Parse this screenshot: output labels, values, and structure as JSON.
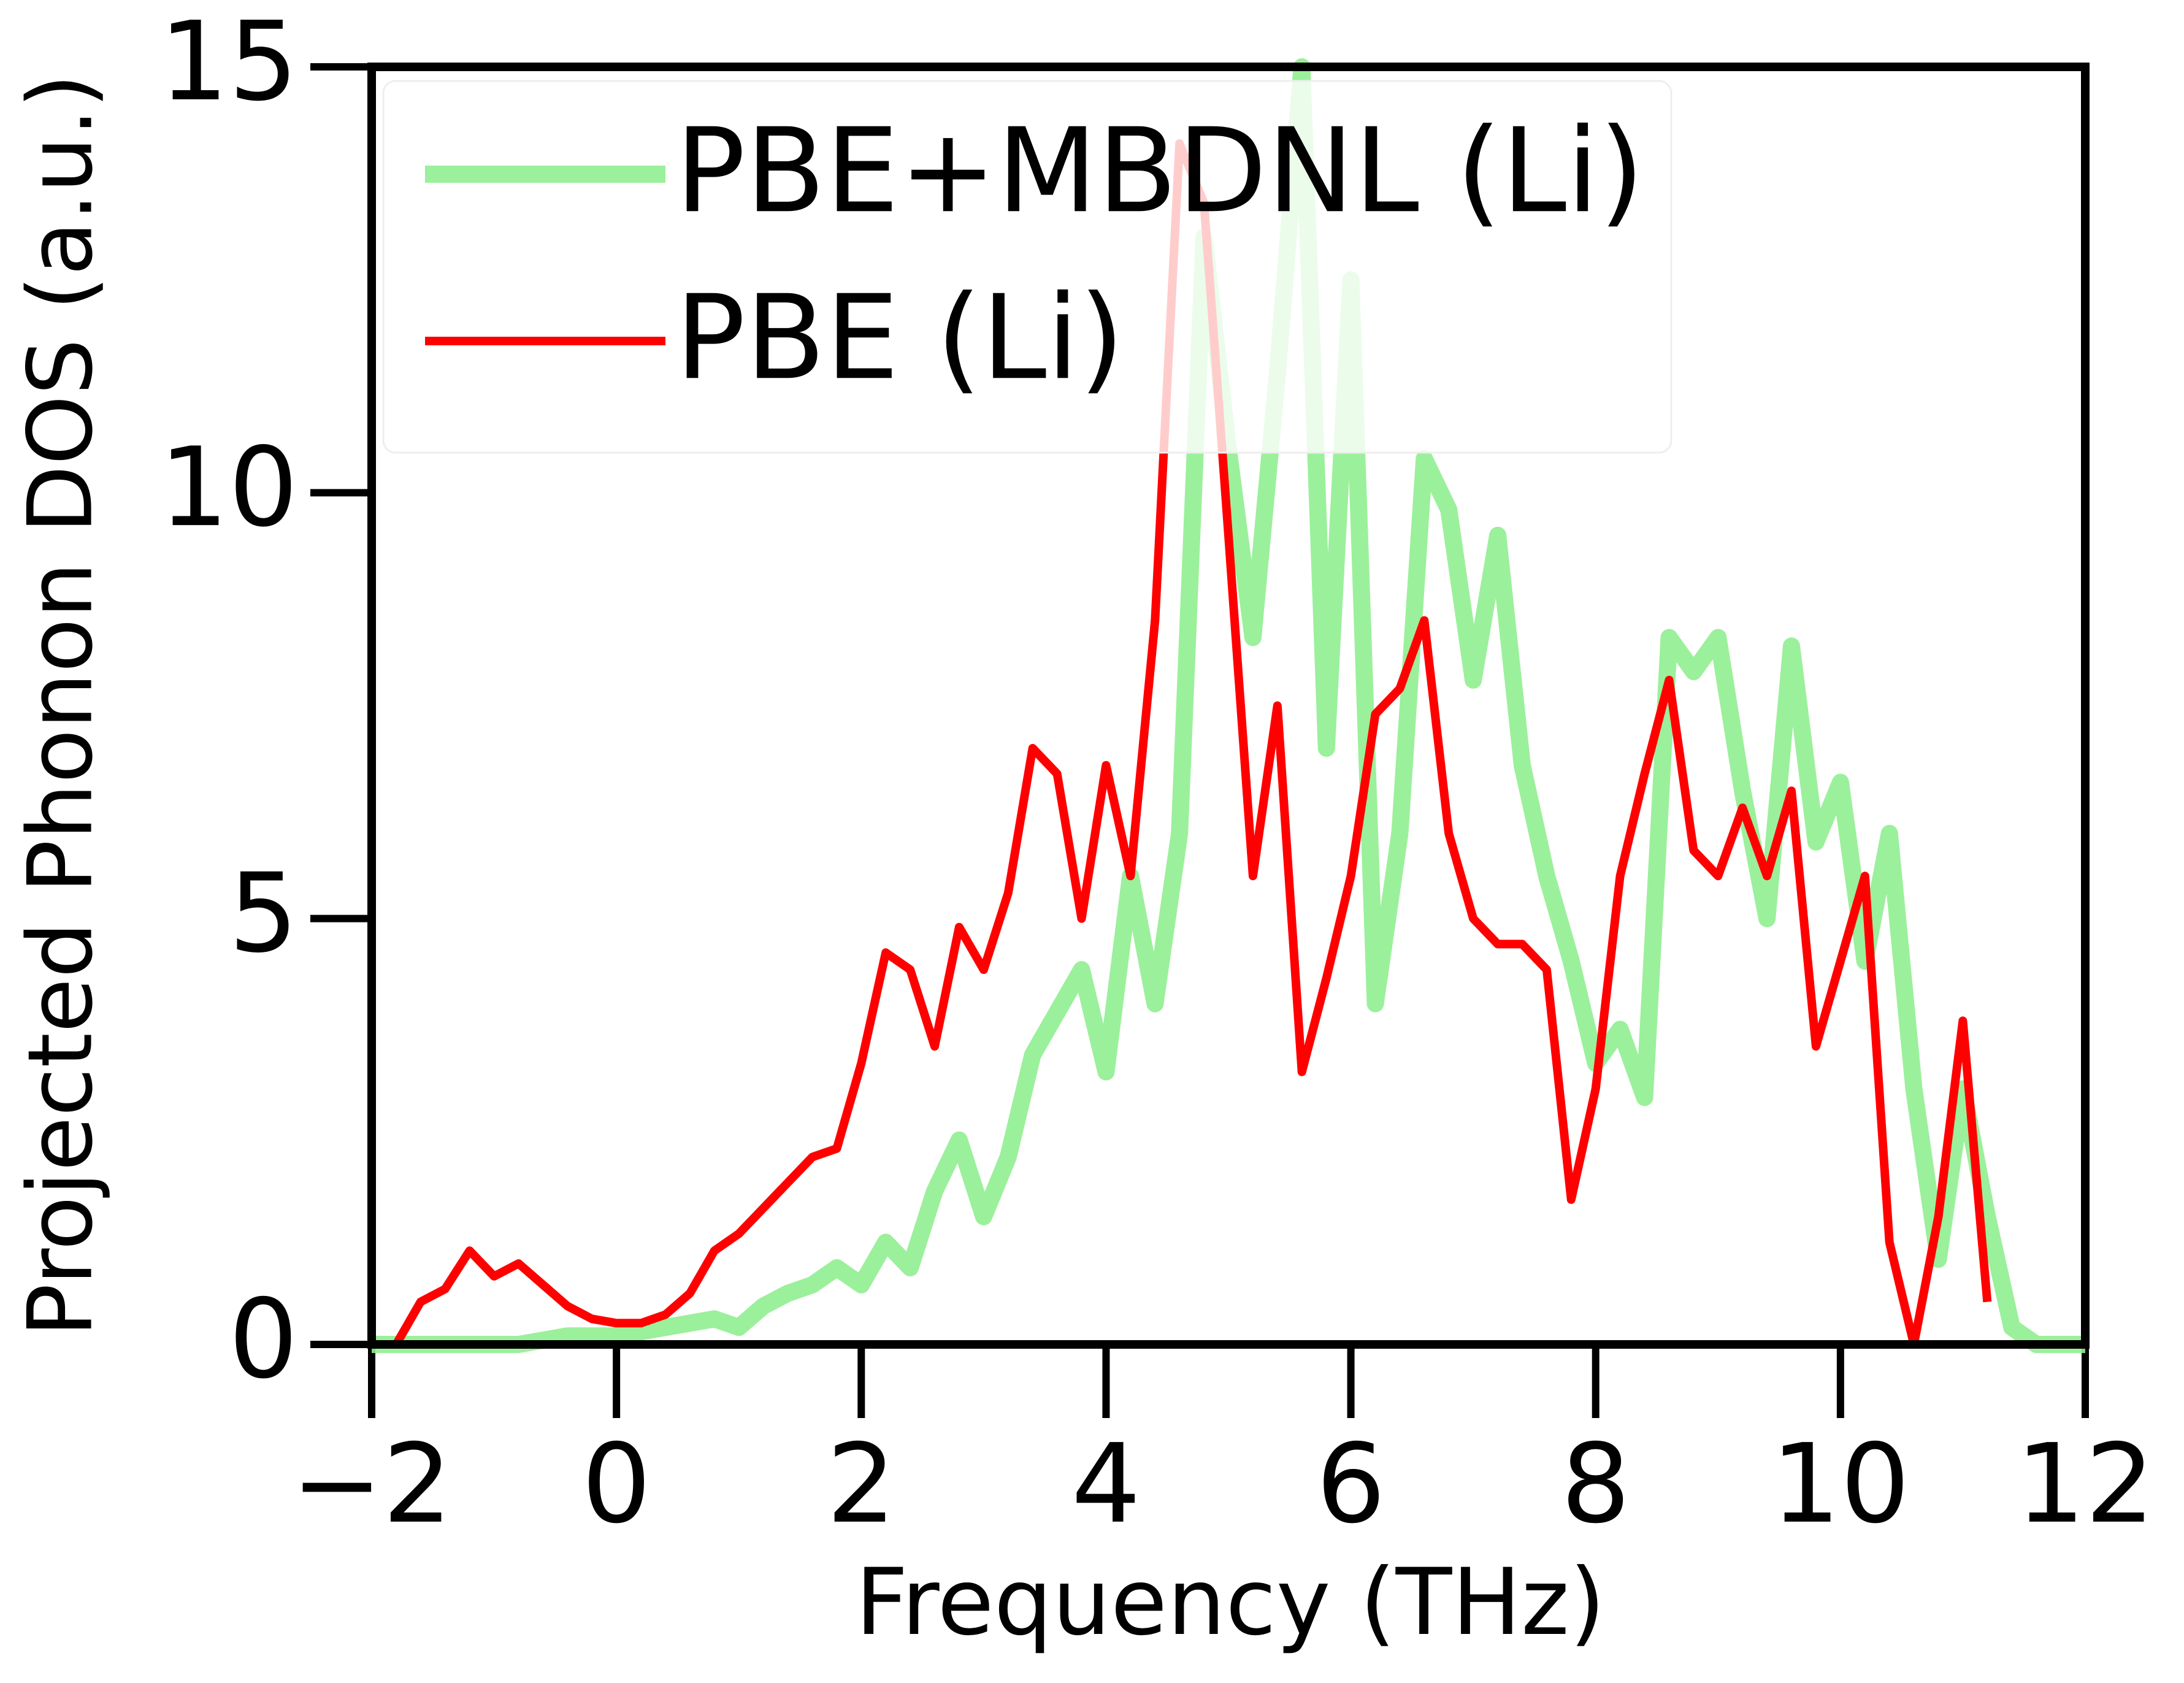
{
  "chart_data": {
    "type": "line",
    "xlabel": "Frequency (THz)",
    "ylabel": "Projected Phonon DOS (a.u.)",
    "x": [
      -2,
      -1.8,
      -1.6,
      -1.4,
      -1.2,
      -1,
      -0.8,
      -0.6,
      -0.4,
      -0.2,
      0,
      0.2,
      0.4,
      0.6,
      0.8,
      1,
      1.2,
      1.4,
      1.6,
      1.8,
      2,
      2.2,
      2.4,
      2.6,
      2.8,
      3,
      3.2,
      3.4,
      3.6,
      3.8,
      4,
      4.2,
      4.4,
      4.6,
      4.8,
      5,
      5.2,
      5.4,
      5.6,
      5.8,
      6,
      6.2,
      6.4,
      6.6,
      6.8,
      7,
      7.2,
      7.4,
      7.6,
      7.8,
      8,
      8.2,
      8.4,
      8.6,
      8.8,
      9,
      9.2,
      9.4,
      9.6,
      9.8,
      10,
      10.2,
      10.4,
      10.6,
      10.8,
      11,
      11.2,
      11.4,
      11.6,
      11.8,
      12
    ],
    "series": [
      {
        "name": "PBE+MBDNL (Li)",
        "color": "#90ee90",
        "values": [
          0,
          0,
          0,
          0,
          0,
          0,
          0,
          0.05,
          0.1,
          0.1,
          0.1,
          0.15,
          0.2,
          0.25,
          0.3,
          0.2,
          0.45,
          0.6,
          0.7,
          0.9,
          0.7,
          1.2,
          0.9,
          1.8,
          2.4,
          1.5,
          2.2,
          3.4,
          3.9,
          4.4,
          3.2,
          5.5,
          4.0,
          6.0,
          13.0,
          10.5,
          8.3,
          11.4,
          15,
          7.0,
          12.5,
          4.0,
          6.0,
          10.4,
          9.8,
          7.8,
          9.5,
          6.8,
          5.5,
          4.5,
          3.3,
          3.7,
          2.9,
          8.3,
          7.9,
          8.3,
          6.5,
          5.0,
          8.2,
          5.9,
          6.6,
          4.5,
          6.0,
          3.0,
          1.0,
          3.0,
          1.5,
          0.2,
          0,
          0,
          0
        ]
      },
      {
        "name": "PBE (Li)",
        "color": "#ff0000",
        "values": [
          null,
          0,
          0.5,
          0.65,
          1.1,
          0.8,
          0.95,
          0.7,
          0.45,
          0.3,
          0.25,
          0.25,
          0.35,
          0.6,
          1.1,
          1.3,
          1.6,
          1.9,
          2.2,
          2.3,
          3.3,
          4.6,
          4.4,
          3.5,
          4.9,
          4.4,
          5.3,
          7.0,
          6.7,
          5.0,
          6.8,
          5.5,
          8.5,
          14.1,
          13.4,
          9.5,
          5.5,
          7.5,
          3.2,
          4.3,
          5.5,
          7.4,
          7.7,
          8.5,
          6.0,
          5.0,
          4.7,
          4.7,
          4.4,
          1.7,
          3.0,
          5.5,
          6.7,
          7.8,
          5.8,
          5.5,
          6.3,
          5.5,
          6.5,
          3.5,
          4.5,
          5.5,
          1.2,
          0,
          1.5,
          3.8,
          0.5,
          null,
          null,
          null,
          null
        ]
      }
    ],
    "xlim": [
      -2,
      12
    ],
    "xticks": [
      {
        "value": -2,
        "label": "−2"
      },
      0,
      2,
      4,
      6,
      8,
      10,
      12
    ],
    "ylim": [
      0,
      15
    ],
    "yticks": [
      0,
      5,
      10,
      15
    ],
    "grid": false,
    "legend": "upper left"
  }
}
